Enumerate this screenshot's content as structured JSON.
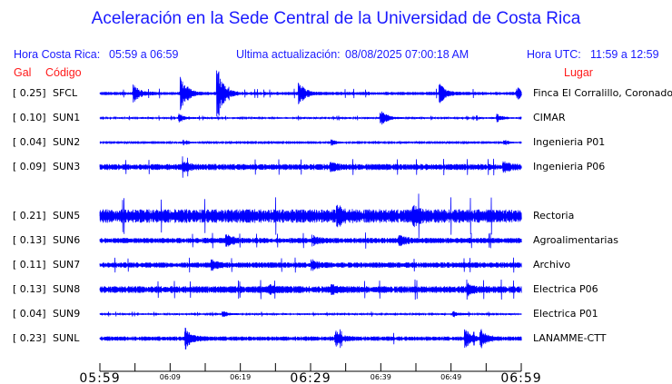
{
  "title": "Aceleración en la Sede Central de la Universidad de Costa Rica",
  "header": {
    "local_label": "Hora Costa Rica:",
    "local_range": "05:59 a 06:59",
    "update_label": "Ultima actualización:",
    "update_value": "08/08/2025 07:00:18 AM",
    "utc_label": "Hora UTC:",
    "utc_range": "11:59 a 12:59",
    "col_gal": "Gal",
    "col_code": "Código",
    "col_place": "Lugar"
  },
  "colors": {
    "trace": "#0000ff",
    "header": "#1a1aff",
    "columns": "#ff1a1a"
  },
  "chart_data": {
    "type": "line",
    "xlabel": "",
    "x_range": [
      "05:59",
      "06:59"
    ],
    "major_ticks": [
      "05:59",
      "06:29",
      "06:59"
    ],
    "minor_ticks": [
      "06:09",
      "06:19",
      "06:39",
      "06:49"
    ],
    "series": [
      {
        "gal": "[  0.25]",
        "name": "SFCL",
        "place": "Finca El Corralillo, Coronado",
        "peak_gal": 0.25
      },
      {
        "gal": "[  0.10]",
        "name": "SUN1",
        "place": "CIMAR",
        "peak_gal": 0.1
      },
      {
        "gal": "[  0.04]",
        "name": "SUN2",
        "place": "Ingenieria P01",
        "peak_gal": 0.04
      },
      {
        "gal": "[  0.09]",
        "name": "SUN3",
        "place": "Ingenieria P06",
        "peak_gal": 0.09
      },
      {
        "gal": "[  0.21]",
        "name": "SUN5",
        "place": "Rectoria",
        "peak_gal": 0.21
      },
      {
        "gal": "[  0.13]",
        "name": "SUN6",
        "place": "Agroalimentarias",
        "peak_gal": 0.13
      },
      {
        "gal": "[  0.11]",
        "name": "SUN7",
        "place": "Archivo",
        "peak_gal": 0.11
      },
      {
        "gal": "[  0.13]",
        "name": "SUN8",
        "place": "Electrica P06",
        "peak_gal": 0.13
      },
      {
        "gal": "[  0.04]",
        "name": "SUN9",
        "place": "Electrica P01",
        "peak_gal": 0.04
      },
      {
        "gal": "[  0.23]",
        "name": "SUNL",
        "place": "LANAMME-CTT",
        "peak_gal": 0.23
      }
    ]
  }
}
